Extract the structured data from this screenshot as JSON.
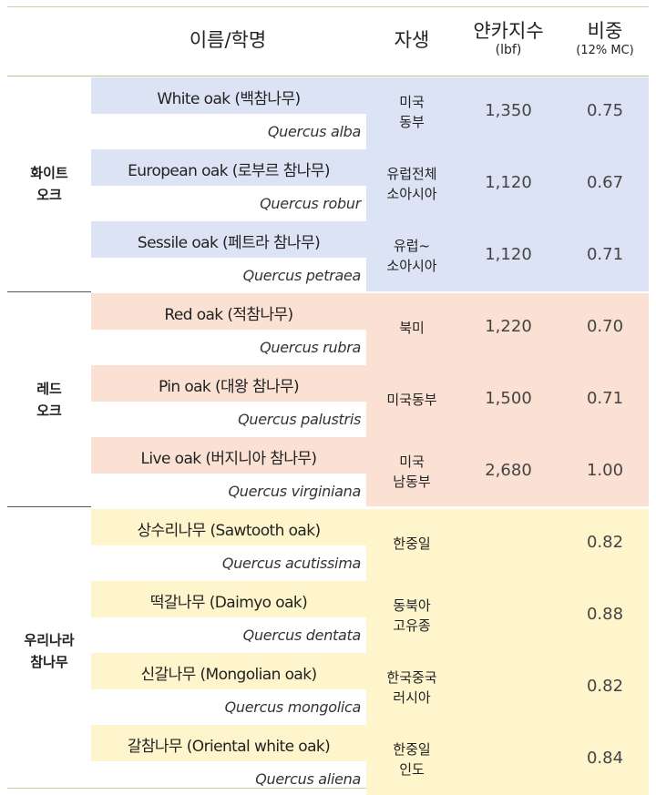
{
  "header": {
    "name": "이름/학명",
    "native": "자생",
    "hardness_line1": "얀카지수",
    "hardness_line2": "(lbf)",
    "density_line1": "비중",
    "density_line2": "(12% MC)"
  },
  "colors": {
    "white_group": "#dbe3f5",
    "red_group": "#fae1d3",
    "korean_group": "#fef5cc",
    "border": "#c5d3a3"
  },
  "groups": [
    {
      "label_line1": "화이트",
      "label_line2": "오크",
      "color": "#dbe3f5",
      "rows": [
        {
          "common": "White oak (백참나무)",
          "latin": "Quercus alba",
          "native": "미국\n동부",
          "hardness": "1,350",
          "density": "0.75"
        },
        {
          "common": "European oak (로부르 참나무)",
          "latin": "Quercus robur",
          "native": "유럽전체\n소아시아",
          "hardness": "1,120",
          "density": "0.67"
        },
        {
          "common": "Sessile oak (페트라 참나무)",
          "latin": "Quercus petraea",
          "native": "유럽~\n소아시아",
          "hardness": "1,120",
          "density": "0.71"
        }
      ]
    },
    {
      "label_line1": "레드",
      "label_line2": "오크",
      "color": "#fae1d3",
      "rows": [
        {
          "common": "Red oak (적참나무)",
          "latin": "Quercus rubra",
          "native": "북미",
          "hardness": "1,220",
          "density": "0.70"
        },
        {
          "common": "Pin oak (대왕 참나무)",
          "latin": "Quercus palustris",
          "native": "미국동부",
          "hardness": "1,500",
          "density": "0.71"
        },
        {
          "common": "Live oak (버지니아 참나무)",
          "latin": "Quercus virginiana",
          "native": "미국\n남동부",
          "hardness": "2,680",
          "density": "1.00"
        }
      ]
    },
    {
      "label_line1": "우리나라",
      "label_line2": "참나무",
      "color": "#fef5cc",
      "rows": [
        {
          "common": "상수리나무 (Sawtooth oak)",
          "latin": "Quercus acutissima",
          "native": "한중일",
          "hardness": "",
          "density": "0.82"
        },
        {
          "common": "떡갈나무 (Daimyo oak)",
          "latin": "Quercus dentata",
          "native": "동북아\n고유종",
          "hardness": "",
          "density": "0.88"
        },
        {
          "common": "신갈나무 (Mongolian oak)",
          "latin": "Quercus mongolica",
          "native": "한국중국\n러시아",
          "hardness": "",
          "density": "0.82"
        },
        {
          "common": "갈참나무 (Oriental white oak)",
          "latin": "Quercus aliena",
          "native": "한중일\n인도",
          "hardness": "",
          "density": "0.84"
        }
      ]
    }
  ]
}
